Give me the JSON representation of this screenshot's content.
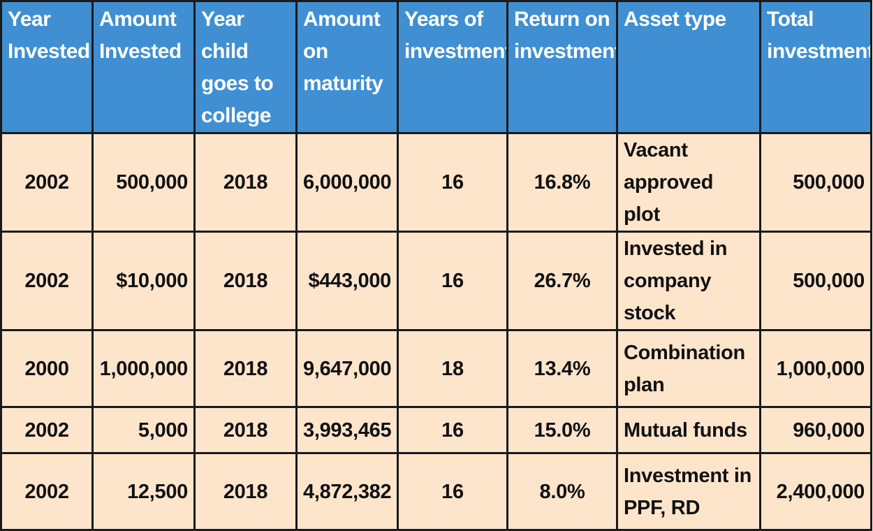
{
  "table": {
    "headers": [
      "Year Invested",
      "Amount Invested",
      "Year child goes to college",
      "Amount on maturity",
      "Years of investment",
      "Return on investment",
      "Asset type",
      "Total investment"
    ],
    "rows": [
      [
        "2002",
        "500,000",
        "2018",
        "6,000,000",
        "16",
        "16.8%",
        "Vacant approved plot",
        "500,000"
      ],
      [
        "2002",
        "$10,000",
        "2018",
        "$443,000",
        "16",
        "26.7%",
        "Invested in company stock",
        "500,000"
      ],
      [
        "2000",
        "1,000,000",
        "2018",
        "9,647,000",
        "18",
        "13.4%",
        "Combination plan",
        "1,000,000"
      ],
      [
        "2002",
        "5,000",
        "2018",
        "3,993,465",
        "16",
        "15.0%",
        "Mutual funds",
        "960,000"
      ],
      [
        "2002",
        "12,500",
        "2018",
        "4,872,382",
        "16",
        "8.0%",
        "Investment in PPF, RD",
        "2,400,000"
      ]
    ]
  },
  "colors": {
    "header_bg": "#3f8fd2",
    "header_text": "#ffffff",
    "cell_bg": "#fde5cc",
    "border": "#1a1a1a"
  }
}
